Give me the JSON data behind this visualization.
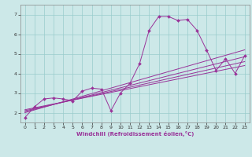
{
  "title": "",
  "xlabel": "Windchill (Refroidissement éolien,°C)",
  "background_color": "#cce8e8",
  "grid_color": "#99cccc",
  "line_color": "#993399",
  "xlim": [
    -0.5,
    23.5
  ],
  "ylim": [
    1.5,
    7.5
  ],
  "xticks": [
    0,
    1,
    2,
    3,
    4,
    5,
    6,
    7,
    8,
    9,
    10,
    11,
    12,
    13,
    14,
    15,
    16,
    17,
    18,
    19,
    20,
    21,
    22,
    23
  ],
  "yticks": [
    2,
    3,
    4,
    5,
    6,
    7
  ],
  "series": [
    [
      0,
      1.75
    ],
    [
      1,
      2.3
    ],
    [
      2,
      2.7
    ],
    [
      3,
      2.75
    ],
    [
      4,
      2.7
    ],
    [
      5,
      2.6
    ],
    [
      6,
      3.1
    ],
    [
      7,
      3.25
    ],
    [
      8,
      3.2
    ],
    [
      9,
      2.1
    ],
    [
      10,
      3.0
    ],
    [
      11,
      3.5
    ],
    [
      12,
      4.5
    ],
    [
      13,
      6.2
    ],
    [
      14,
      6.9
    ],
    [
      15,
      6.9
    ],
    [
      16,
      6.7
    ],
    [
      17,
      6.75
    ],
    [
      18,
      6.2
    ],
    [
      19,
      5.2
    ],
    [
      20,
      4.15
    ],
    [
      21,
      4.75
    ],
    [
      22,
      4.0
    ],
    [
      23,
      4.9
    ]
  ],
  "trend_lines": [
    [
      [
        0,
        2.0
      ],
      [
        23,
        5.2
      ]
    ],
    [
      [
        0,
        2.05
      ],
      [
        23,
        4.85
      ]
    ],
    [
      [
        0,
        2.1
      ],
      [
        23,
        4.6
      ]
    ],
    [
      [
        0,
        2.15
      ],
      [
        23,
        4.4
      ]
    ]
  ]
}
